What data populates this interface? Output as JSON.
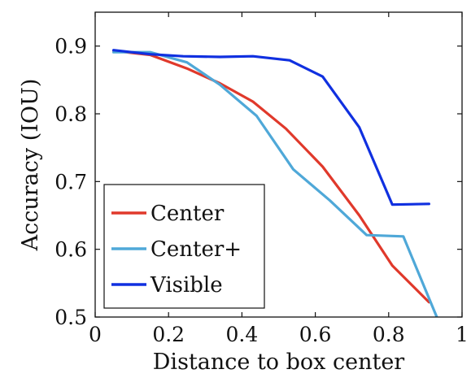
{
  "chart_data": {
    "type": "line",
    "title": "",
    "xlabel": "Distance to box center",
    "ylabel": "Accuracy (IOU)",
    "xlim": [
      0,
      1
    ],
    "ylim": [
      0.5,
      0.95
    ],
    "xticks": [
      {
        "value": 0,
        "label": "0"
      },
      {
        "value": 0.2,
        "label": "0.2"
      },
      {
        "value": 0.4,
        "label": "0.4"
      },
      {
        "value": 0.6,
        "label": "0.6"
      },
      {
        "value": 0.8,
        "label": "0.8"
      },
      {
        "value": 1,
        "label": "1"
      }
    ],
    "yticks": [
      {
        "value": 0.5,
        "label": "0.5"
      },
      {
        "value": 0.6,
        "label": "0.6"
      },
      {
        "value": 0.7,
        "label": "0.7"
      },
      {
        "value": 0.8,
        "label": "0.8"
      },
      {
        "value": 0.9,
        "label": "0.9"
      }
    ],
    "grid": false,
    "legend_position": "bottom-left",
    "series": [
      {
        "name": "Center",
        "color": "#e0392b",
        "points": [
          [
            0.05,
            0.893
          ],
          [
            0.15,
            0.887
          ],
          [
            0.25,
            0.867
          ],
          [
            0.34,
            0.845
          ],
          [
            0.43,
            0.818
          ],
          [
            0.52,
            0.778
          ],
          [
            0.62,
            0.722
          ],
          [
            0.72,
            0.65
          ],
          [
            0.81,
            0.576
          ],
          [
            0.91,
            0.522
          ]
        ]
      },
      {
        "name": "Center+",
        "color": "#4fa8d8",
        "points": [
          [
            0.05,
            0.891
          ],
          [
            0.15,
            0.891
          ],
          [
            0.25,
            0.876
          ],
          [
            0.34,
            0.843
          ],
          [
            0.44,
            0.797
          ],
          [
            0.54,
            0.718
          ],
          [
            0.64,
            0.672
          ],
          [
            0.74,
            0.621
          ],
          [
            0.84,
            0.619
          ],
          [
            0.935,
            0.495
          ]
        ]
      },
      {
        "name": "Visible",
        "color": "#1030e0",
        "points": [
          [
            0.05,
            0.894
          ],
          [
            0.15,
            0.888
          ],
          [
            0.24,
            0.885
          ],
          [
            0.34,
            0.884
          ],
          [
            0.43,
            0.885
          ],
          [
            0.53,
            0.879
          ],
          [
            0.62,
            0.855
          ],
          [
            0.72,
            0.78
          ],
          [
            0.81,
            0.666
          ],
          [
            0.91,
            0.667
          ]
        ]
      }
    ]
  }
}
